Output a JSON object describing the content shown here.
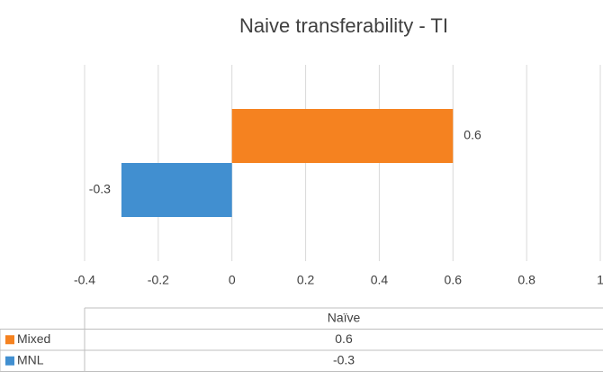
{
  "chart_data": {
    "type": "bar",
    "orientation": "horizontal",
    "title": "Naive transferability - TI",
    "categories": [
      "Naïve"
    ],
    "series": [
      {
        "name": "Mixed",
        "color": "#f58220",
        "values": [
          0.6
        ]
      },
      {
        "name": "MNL",
        "color": "#418fd0",
        "values": [
          -0.3
        ]
      }
    ],
    "xlim": [
      -0.4,
      1
    ],
    "xticks": [
      -0.4,
      -0.2,
      0,
      0.2,
      0.4,
      0.6,
      0.8,
      1
    ],
    "grid": true,
    "data_table": true
  }
}
